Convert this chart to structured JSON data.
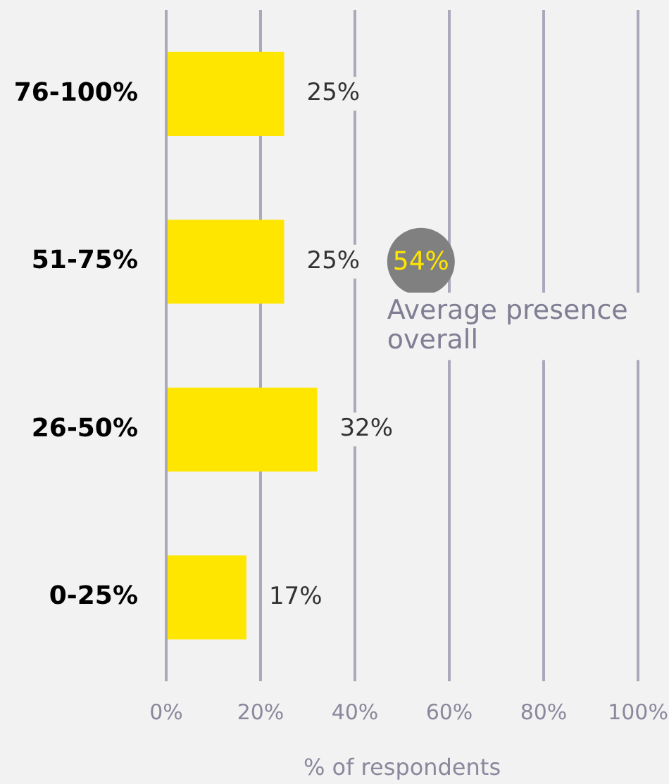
{
  "chart_data": {
    "type": "bar",
    "orientation": "horizontal",
    "categories": [
      "76-100%",
      "51-75%",
      "26-50%",
      "0-25%"
    ],
    "series": [
      {
        "color": "#ffe600",
        "values": [
          25,
          25,
          32,
          17
        ],
        "value_labels": [
          "25%",
          "25%",
          "32%",
          "17%"
        ]
      },
      {
        "type": "scatter",
        "x": [
          "51-75%"
        ],
        "values": [
          54
        ],
        "color": "#808080",
        "marker": "circle",
        "value_labels": [
          "54%"
        ]
      }
    ],
    "xlim": [
      0,
      100
    ],
    "xticks": [
      {
        "value": 0,
        "label": "0%"
      },
      {
        "value": 20,
        "label": "20%"
      },
      {
        "value": 40,
        "label": "40%"
      },
      {
        "value": 60,
        "label": "60%"
      },
      {
        "value": 80,
        "label": "80%"
      },
      {
        "value": 100,
        "label": "100%"
      }
    ],
    "xlabel": "% of respondents",
    "grid": "x",
    "annotations": [
      "Average presence overall"
    ]
  }
}
